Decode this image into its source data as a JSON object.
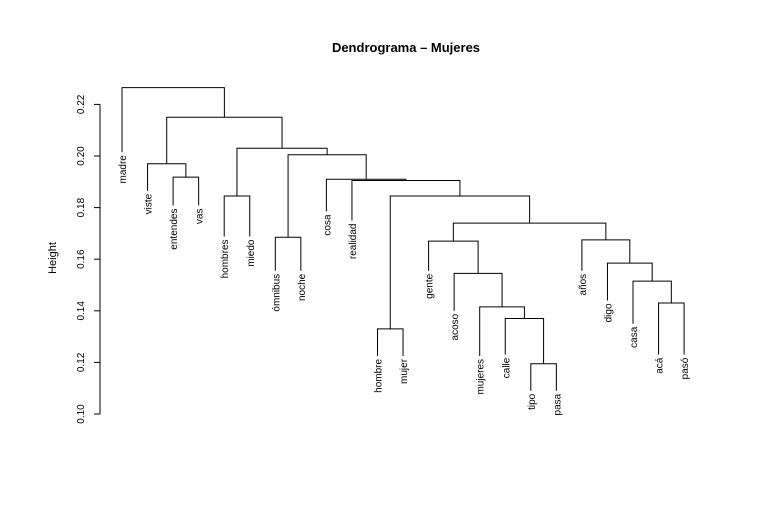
{
  "chart_data": {
    "type": "dendrogram",
    "title": "Dendrograma – Mujeres",
    "ylabel": "Height",
    "xlabel": "",
    "ylim": [
      0.1,
      0.227
    ],
    "yticks": [
      0.1,
      0.12,
      0.14,
      0.16,
      0.18,
      0.2,
      0.22
    ],
    "ytick_labels": [
      "0.10",
      "0.12",
      "0.14",
      "0.16",
      "0.18",
      "0.20",
      "0.22"
    ],
    "leaves": [
      {
        "label": "madre",
        "height": 0.2015
      },
      {
        "label": "viste",
        "height": 0.1865
      },
      {
        "label": "entendes",
        "height": 0.1808
      },
      {
        "label": "vas",
        "height": 0.1808
      },
      {
        "label": "hombres",
        "height": 0.1688
      },
      {
        "label": "miedo",
        "height": 0.1688
      },
      {
        "label": "ómnibus",
        "height": 0.1555
      },
      {
        "label": "noche",
        "height": 0.1555
      },
      {
        "label": "cosa",
        "height": 0.1785
      },
      {
        "label": "realidad",
        "height": 0.175
      },
      {
        "label": "hombre",
        "height": 0.1225
      },
      {
        "label": "mujer",
        "height": 0.1225
      },
      {
        "label": "gente",
        "height": 0.1555
      },
      {
        "label": "acoso",
        "height": 0.14
      },
      {
        "label": "mujeres",
        "height": 0.1225
      },
      {
        "label": "calle",
        "height": 0.123
      },
      {
        "label": "tipo",
        "height": 0.109
      },
      {
        "label": "pasa",
        "height": 0.109
      },
      {
        "label": "años",
        "height": 0.1555
      },
      {
        "label": "digo",
        "height": 0.144
      },
      {
        "label": "casa",
        "height": 0.135
      },
      {
        "label": "acá",
        "height": 0.123
      },
      {
        "label": "pasó",
        "height": 0.123
      }
    ],
    "merges": [
      [
        -17,
        -18,
        0.1195
      ],
      [
        -16,
        1,
        0.137
      ],
      [
        -15,
        2,
        0.1415
      ],
      [
        -22,
        -23,
        0.143
      ],
      [
        -11,
        -12,
        0.133
      ],
      [
        -21,
        4,
        0.1515
      ],
      [
        -14,
        3,
        0.1545
      ],
      [
        -20,
        6,
        0.1585
      ],
      [
        -7,
        -8,
        0.1685
      ],
      [
        -13,
        7,
        0.167
      ],
      [
        -19,
        8,
        0.1675
      ],
      [
        10,
        11,
        0.174
      ],
      [
        -5,
        -6,
        0.1845
      ],
      [
        -3,
        -4,
        0.1918
      ],
      [
        5,
        12,
        0.1845
      ],
      [
        -10,
        15,
        0.1905
      ],
      [
        -2,
        14,
        0.197
      ],
      [
        -9,
        16,
        0.191
      ],
      [
        9,
        18,
        0.2005
      ],
      [
        13,
        19,
        0.203
      ],
      [
        17,
        20,
        0.215
      ],
      [
        -1,
        21,
        0.2265
      ]
    ]
  }
}
